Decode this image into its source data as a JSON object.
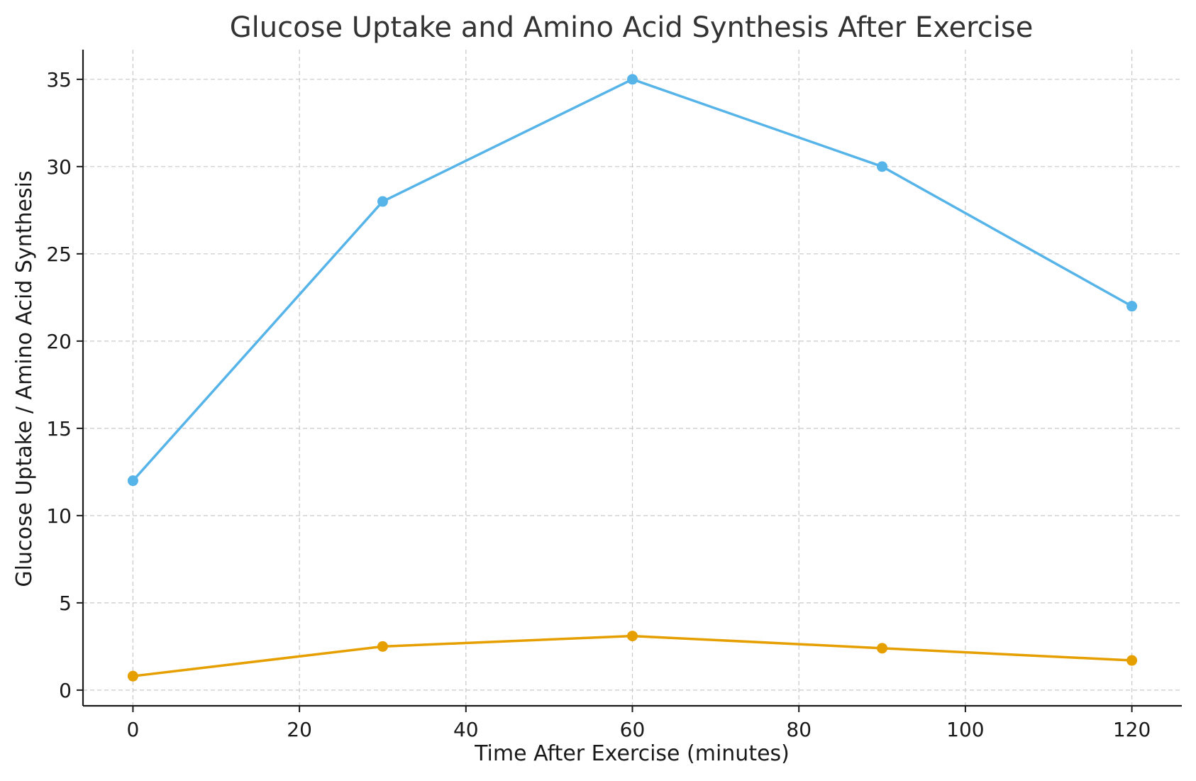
{
  "chart_data": {
    "type": "line",
    "title": "Glucose Uptake and Amino Acid Synthesis After Exercise",
    "xlabel": "Time After Exercise (minutes)",
    "ylabel": "Glucose Uptake / Amino Acid Synthesis",
    "x": [
      0,
      30,
      60,
      90,
      120
    ],
    "xlim": [
      -6,
      126
    ],
    "ylim": [
      -0.9,
      36.7
    ],
    "xticks": [
      0,
      20,
      40,
      60,
      80,
      100,
      120
    ],
    "yticks": [
      0,
      5,
      10,
      15,
      20,
      25,
      30,
      35
    ],
    "grid": true,
    "legend": false,
    "series": [
      {
        "values": [
          12,
          28,
          35,
          30,
          22
        ],
        "color": "#56B4E9"
      },
      {
        "values": [
          0.8,
          2.5,
          3.1,
          2.4,
          1.7
        ],
        "color": "#E69F00"
      }
    ]
  }
}
